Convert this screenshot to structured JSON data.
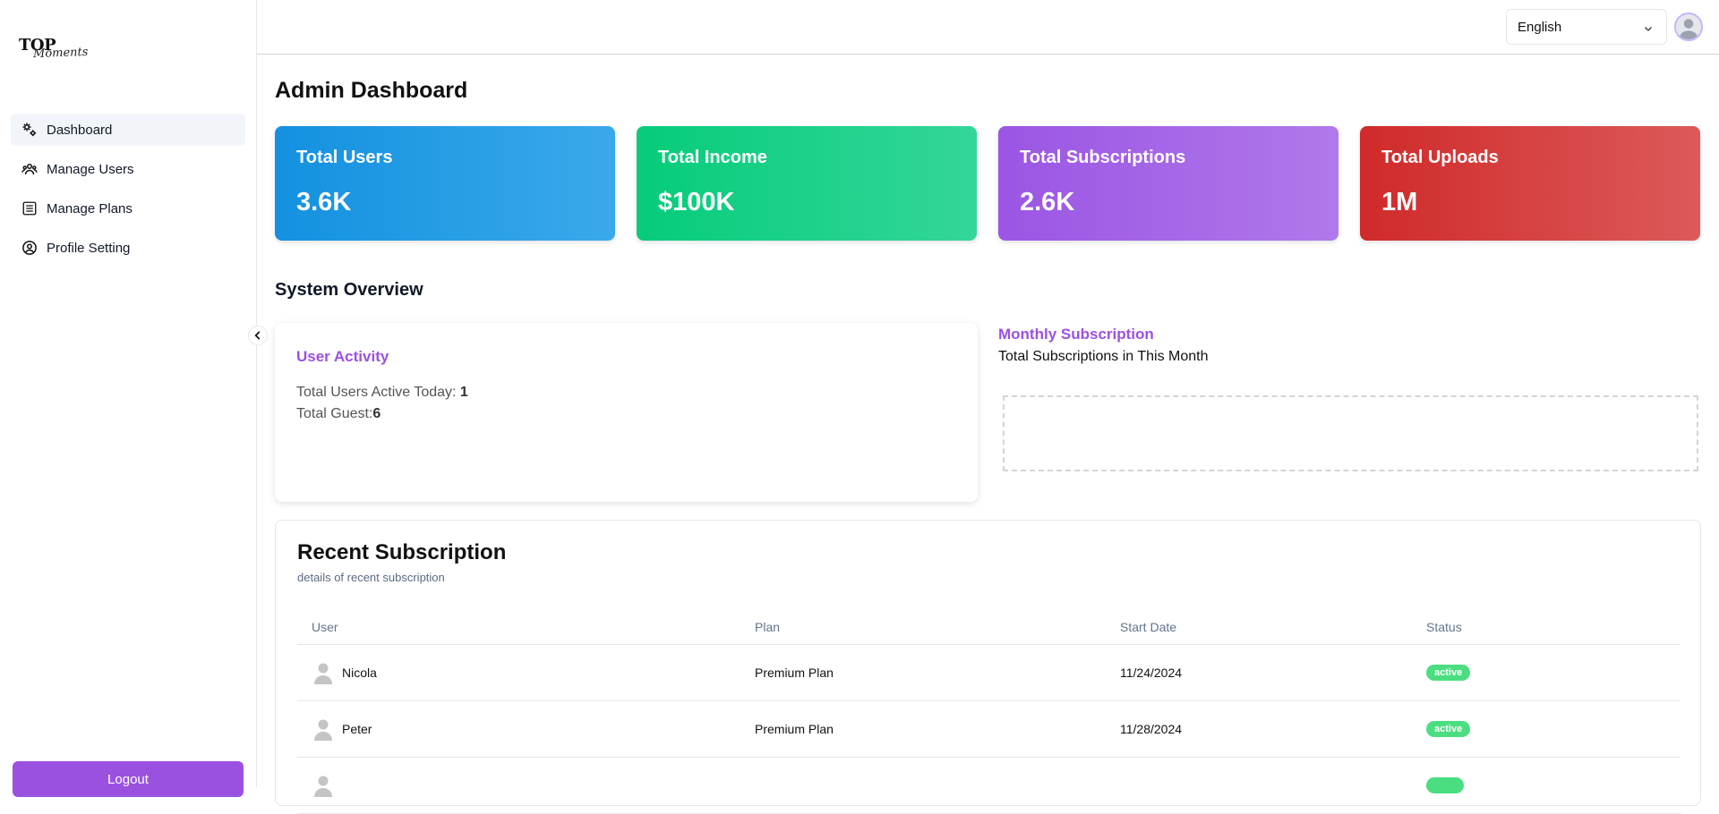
{
  "brand": {
    "top": "TOP",
    "script": "Moments"
  },
  "sidebar": {
    "items": [
      {
        "label": "Dashboard",
        "icon": "gears-icon",
        "active": true
      },
      {
        "label": "Manage Users",
        "icon": "users-icon"
      },
      {
        "label": "Manage Plans",
        "icon": "list-icon"
      },
      {
        "label": "Profile Setting",
        "icon": "user-circle-icon"
      }
    ],
    "logout_label": "Logout"
  },
  "header": {
    "language": "English"
  },
  "page": {
    "title": "Admin Dashboard"
  },
  "stats": [
    {
      "label": "Total Users",
      "value": "3.6K",
      "color": "#1391e0"
    },
    {
      "label": "Total Income",
      "value": "$100K",
      "color": "#06cc7a"
    },
    {
      "label": "Total Subscriptions",
      "value": "2.6K",
      "color": "#9b55e4"
    },
    {
      "label": "Total Uploads",
      "value": "1M",
      "color": "#d02a2a"
    }
  ],
  "overview": {
    "title": "System Overview",
    "activity": {
      "title": "User Activity",
      "active_label": "Total Users Active Today: ",
      "active_value": "1",
      "guest_label": "Total Guest:",
      "guest_value": "6"
    },
    "monthly": {
      "title": "Monthly Subscription",
      "subtitle": "Total Subscriptions in This Month"
    }
  },
  "recent": {
    "title": "Recent Subscription",
    "subtitle": "details of recent subscription",
    "columns": [
      "User",
      "Plan",
      "Start Date",
      "Status"
    ],
    "rows": [
      {
        "user": "Nicola",
        "plan": "Premium Plan",
        "start": "11/24/2024",
        "status": "active"
      },
      {
        "user": "Peter",
        "plan": "Premium Plan",
        "start": "11/28/2024",
        "status": "active"
      }
    ]
  },
  "colors": {
    "accent": "#9b51e0",
    "active_badge": "#4ade80"
  }
}
